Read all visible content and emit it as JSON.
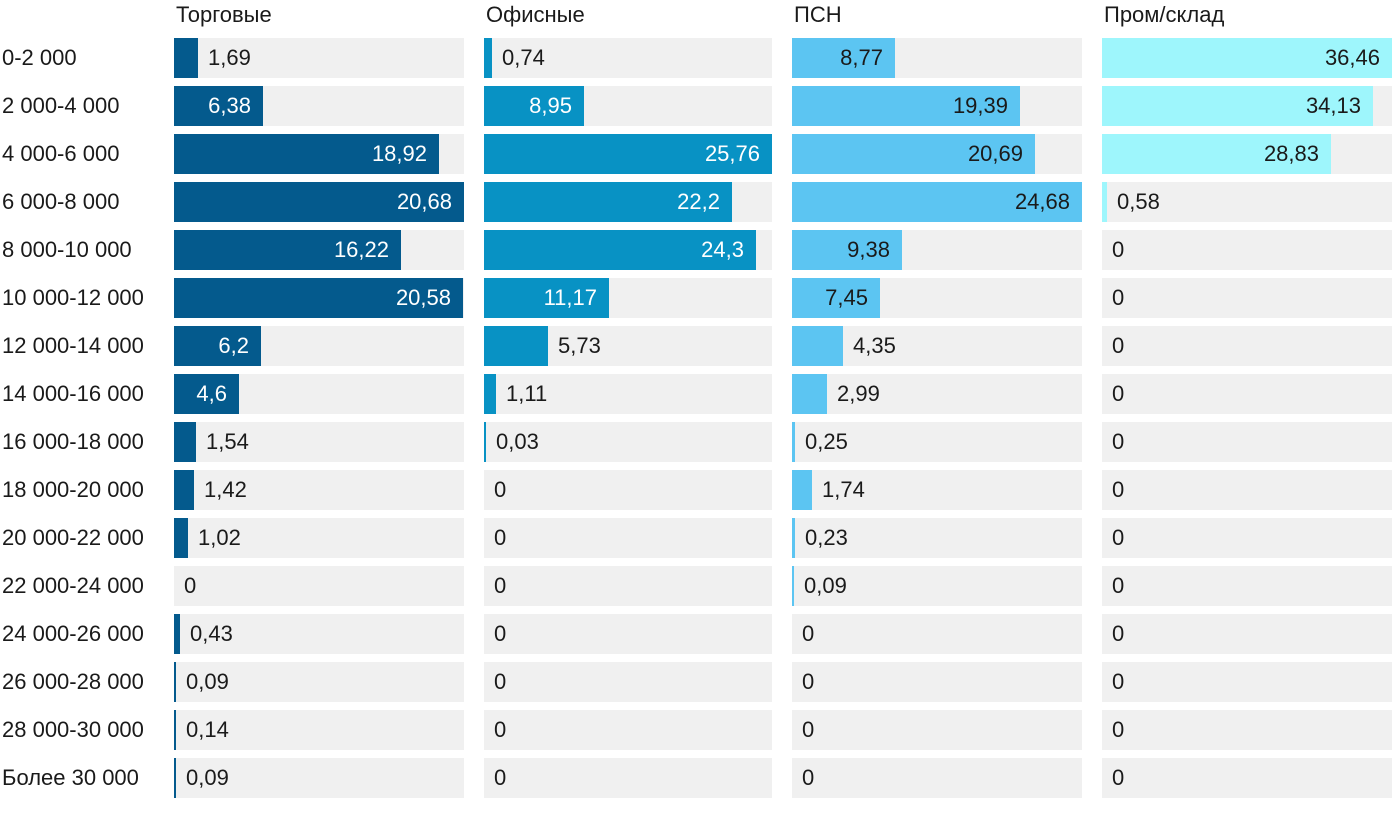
{
  "chart_data": {
    "type": "bar",
    "orientation": "horizontal",
    "layout": "small-multiples",
    "categories": [
      "0-2 000",
      "2 000-4 000",
      "4 000-6 000",
      "6 000-8 000",
      "8 000-10 000",
      "10 000-12 000",
      "12 000-14 000",
      "14 000-16 000",
      "16 000-18 000",
      "18 000-20 000",
      "20 000-22 000",
      "22 000-24 000",
      "24 000-26 000",
      "26 000-28 000",
      "28 000-30 000",
      "Более 30 000"
    ],
    "series": [
      {
        "name": "Торговые",
        "color": "#045a8d",
        "label_inside_color": "#ffffff",
        "values": [
          1.69,
          6.38,
          18.92,
          20.68,
          16.22,
          20.58,
          6.2,
          4.6,
          1.54,
          1.42,
          1.02,
          0,
          0.43,
          0.09,
          0.14,
          0.09
        ],
        "labels": [
          "1,69",
          "6,38",
          "18,92",
          "20,68",
          "16,22",
          "20,58",
          "6,2",
          "4,6",
          "1,54",
          "1,42",
          "1,02",
          "0",
          "0,43",
          "0,09",
          "0,14",
          "0,09"
        ]
      },
      {
        "name": "Офисные",
        "color": "#0892c4",
        "label_inside_color": "#ffffff",
        "values": [
          0.74,
          8.95,
          25.76,
          22.2,
          24.3,
          11.17,
          5.73,
          1.11,
          0.03,
          0,
          0,
          0,
          0,
          0,
          0,
          0
        ],
        "labels": [
          "0,74",
          "8,95",
          "25,76",
          "22,2",
          "24,3",
          "11,17",
          "5,73",
          "1,11",
          "0,03",
          "0",
          "0",
          "0",
          "0",
          "0",
          "0",
          "0"
        ]
      },
      {
        "name": "ПСН",
        "color": "#5cc5f2",
        "label_inside_color": "#1a1a1a",
        "values": [
          8.77,
          19.39,
          20.69,
          24.68,
          9.38,
          7.45,
          4.35,
          2.99,
          0.25,
          1.74,
          0.23,
          0.09,
          0,
          0,
          0,
          0
        ],
        "labels": [
          "8,77",
          "19,39",
          "20,69",
          "24,68",
          "9,38",
          "7,45",
          "4,35",
          "2,99",
          "0,25",
          "1,74",
          "0,23",
          "0,09",
          "0",
          "0",
          "0",
          "0"
        ]
      },
      {
        "name": "Пром/склад",
        "color": "#9ef6fc",
        "label_inside_color": "#1a1a1a",
        "values": [
          36.46,
          34.13,
          28.83,
          0.58,
          0,
          0,
          0,
          0,
          0,
          0,
          0,
          0,
          0,
          0,
          0,
          0
        ],
        "labels": [
          "36,46",
          "34,13",
          "28,83",
          "0,58",
          "0",
          "0",
          "0",
          "0",
          "0",
          "0",
          "0",
          "0",
          "0",
          "0",
          "0",
          "0"
        ]
      }
    ],
    "label_outside_color": "#1a1a1a",
    "track_color": "#f0f0f0",
    "grid": false,
    "legend": "none"
  }
}
